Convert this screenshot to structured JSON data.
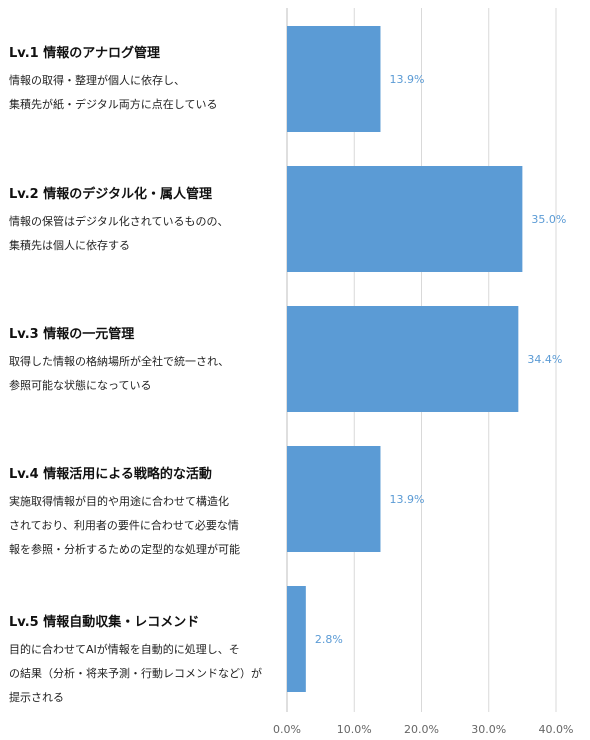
{
  "chart_data": {
    "type": "bar",
    "orientation": "horizontal",
    "categories": [
      "Lv.1 情報のアナログ管理",
      "Lv.2 情報のデジタル化・属人管理",
      "Lv.3 情報の一元管理",
      "Lv.4 情報活用による戦略的な活動",
      "Lv.5 情報自動収集・レコメンド"
    ],
    "descriptions": [
      [
        "情報の取得・整理が個人に依存し、",
        "集積先が紙・デジタル両方に点在している"
      ],
      [
        "情報の保管はデジタル化されているものの、",
        "集積先は個人に依存する"
      ],
      [
        "取得した情報の格納場所が全社で統一され、",
        "参照可能な状態になっている"
      ],
      [
        "実施取得情報が目的や用途に合わせて構造化",
        "されており、利用者の要件に合わせて必要な情",
        "報を参照・分析するための定型的な処理が可能"
      ],
      [
        "目的に合わせてAIが情報を自動的に処理し、そ",
        "の結果（分析・将来予測・行動レコメンドなど）が",
        "提示される"
      ]
    ],
    "values": [
      13.9,
      35.0,
      34.4,
      13.9,
      2.8
    ],
    "value_labels": [
      "13.9%",
      "35.0%",
      "34.4%",
      "13.9%",
      "2.8%"
    ],
    "xlim": [
      0,
      40
    ],
    "xticks": [
      0,
      10,
      20,
      30,
      40
    ],
    "xtick_labels": [
      "0.0%",
      "10.0%",
      "20.0%",
      "30.0%",
      "40.0%"
    ],
    "grid": true,
    "bar_color": "#5B9BD5",
    "label_color": "#5B9BD5"
  }
}
